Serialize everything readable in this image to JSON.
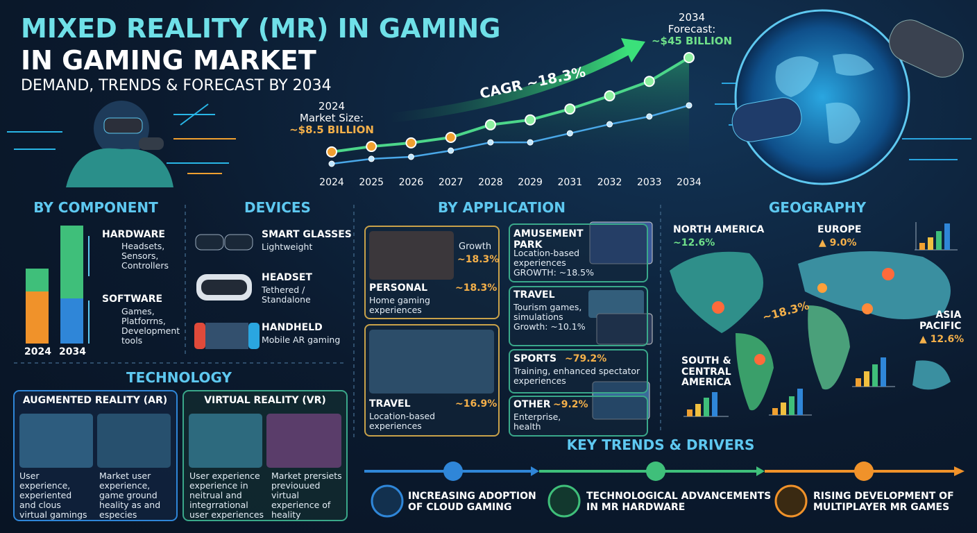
{
  "header": {
    "title_line1": "MIXED REALITY (MR) IN GAMING",
    "title_line2": "IN GAMING MARKET",
    "subtitle": "DEMAND, TRENDS & FORECAST BY 2034"
  },
  "chart_data": {
    "type": "line",
    "categories": [
      "2024",
      "2025",
      "2026",
      "2027",
      "2028",
      "2029",
      "2031",
      "2032",
      "2033",
      "2034"
    ],
    "series": [
      {
        "color": "#4cd68a",
        "values": [
          8.5,
          10.6,
          12.0,
          14.1,
          19.0,
          20.9,
          25.1,
          30.2,
          35.8,
          45
        ]
      },
      {
        "color": "#4aa8e8",
        "values": [
          3.9,
          5.8,
          6.6,
          9.0,
          12.2,
          12.2,
          15.7,
          19.2,
          22.2,
          26.5
        ]
      }
    ],
    "start_label": [
      "2024",
      "Market Size:",
      "~$8.5 BILLION"
    ],
    "end_label": [
      "2034",
      "Forecast:",
      "~$45 BILLION"
    ],
    "cagr_label": "CAGR ~18.3%"
  },
  "component": {
    "title": "BY COMPONENT",
    "years": [
      "2024",
      "2034"
    ],
    "items": [
      {
        "name": "HARDWARE",
        "desc": [
          "Headsets,",
          "Sensors,",
          "Controllers"
        ]
      },
      {
        "name": "SOFTWARE",
        "desc": [
          "Games,",
          "Platforrns,",
          "Development",
          "tools"
        ]
      }
    ]
  },
  "devices": {
    "title": "DEVICES",
    "items": [
      {
        "name": "SMART GLASSES",
        "desc": [
          "Lightweight"
        ]
      },
      {
        "name": "HEADSET",
        "desc": [
          "Tethered /",
          "Standalone"
        ]
      },
      {
        "name": "HANDHELD",
        "desc": [
          "Mobile AR gaming"
        ]
      }
    ]
  },
  "technology": {
    "title": "TECHNOLOGY",
    "panels": [
      {
        "title": "AUGMENTED REALITY (AR)",
        "texts": [
          [
            "User",
            "experience,",
            "experiented",
            "and clous",
            "virtual gamings"
          ],
          [
            "Market user",
            "experience,",
            "game ground",
            "heality as and",
            "especies"
          ]
        ]
      },
      {
        "title": "VIRTUAL REALITY (VR)",
        "texts": [
          [
            "User experience",
            "experience in",
            "neitrual and",
            "integrrational",
            "user experiences"
          ],
          [
            "Market prersiets",
            "previouued",
            "virtual",
            "experience of",
            "heality"
          ]
        ]
      }
    ]
  },
  "application": {
    "title": "BY APPLICATION",
    "left": [
      {
        "growth_label": "Growth",
        "growth": "~18.3%",
        "name": "PERSONAL",
        "value": "~18.3%",
        "desc": [
          "Home gaming",
          "experiences"
        ]
      },
      {
        "name": "TRAVEL",
        "value": "~16.9%",
        "desc": [
          "Location-based",
          "experiences"
        ]
      }
    ],
    "right": [
      {
        "name": [
          "AMUSEMENT",
          "PARK"
        ],
        "desc": [
          "Location-based",
          "experiences",
          "GROWTH: ~18.5%"
        ]
      },
      {
        "name": [
          "TRAVEL"
        ],
        "desc": [
          "Tourism games,",
          "simulations",
          "Growth: ~10.1%"
        ]
      },
      {
        "name": [
          "SPORTS"
        ],
        "value": "~79.2%",
        "desc": [
          "Training, enhanced spectator",
          "experiences"
        ]
      },
      {
        "name": [
          "OTHER"
        ],
        "value": "~9.2%",
        "desc": [
          "Enterprise,",
          "health"
        ]
      }
    ]
  },
  "geography": {
    "title": "GEOGRAPHY",
    "center_label": "~18.3%",
    "regions": [
      {
        "name": [
          "NORTH AMERICA"
        ],
        "value": "~12.6%"
      },
      {
        "name": [
          "EUROPE"
        ],
        "value": "▲ 9.0%"
      },
      {
        "name": [
          "ASIA",
          "PACIFIC"
        ],
        "value": "▲ 12.6%"
      },
      {
        "name": [
          "SOUTH &",
          "CENTRAL",
          "AMERICA"
        ]
      }
    ]
  },
  "trends": {
    "title": "KEY TRENDS & DRIVERS",
    "items": [
      [
        "INCREASING ADOPTION",
        "OF CLOUD GAMING"
      ],
      [
        "TECHNOLOGICAL ADVANCEMENTS",
        "IN MR HARDWARE"
      ],
      [
        "RISING DEVELOPMENT OF",
        "MULTIPLAYER MR GAMES"
      ]
    ]
  }
}
